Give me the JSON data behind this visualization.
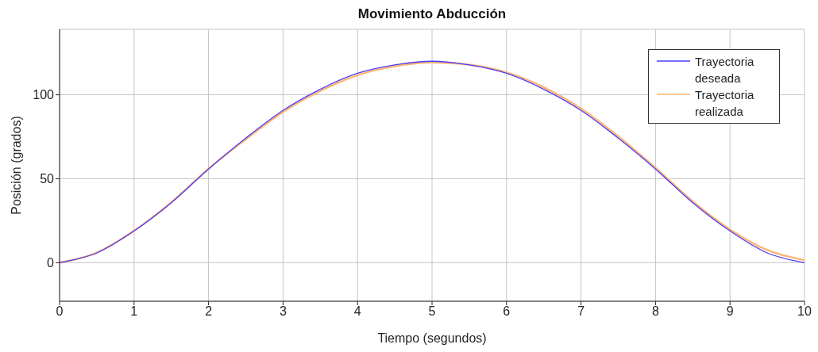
{
  "chart_data": {
    "type": "line",
    "title": "Movimiento Abducción",
    "xlabel": "Tiempo (segundos)",
    "ylabel": "Posición (grados)",
    "x": [
      0,
      0.5,
      1,
      1.5,
      2,
      2.5,
      3,
      3.5,
      4,
      4.5,
      5,
      5.5,
      6,
      6.5,
      7,
      7.5,
      8,
      8.5,
      9,
      9.5,
      10
    ],
    "series": [
      {
        "name": "Trayectoria deseada",
        "color": "#4a3cff",
        "values": [
          0,
          5.8,
          18.9,
          35.7,
          55.8,
          74.2,
          90.7,
          103.3,
          112.8,
          117.8,
          120,
          117.8,
          112.8,
          103.3,
          90.7,
          74.2,
          55.8,
          35.7,
          18.9,
          5.8,
          0
        ]
      },
      {
        "name": "Trayectoria realizada",
        "color": "#ffb574",
        "values": [
          0,
          6,
          19,
          36,
          56,
          73.5,
          89.8,
          102.3,
          111.7,
          117,
          119.3,
          118,
          113.3,
          104.5,
          91.8,
          75.3,
          56.5,
          36.5,
          19.8,
          7.5,
          1.5
        ]
      }
    ],
    "xlim": [
      0,
      10
    ],
    "xticks": [
      0,
      1,
      2,
      3,
      4,
      5,
      6,
      7,
      8,
      9,
      10
    ],
    "ylim": [
      -23,
      139
    ],
    "yticks": [
      0,
      50,
      100
    ],
    "grid": true,
    "legend": "top right",
    "marker": "none",
    "line_style": "solid"
  }
}
